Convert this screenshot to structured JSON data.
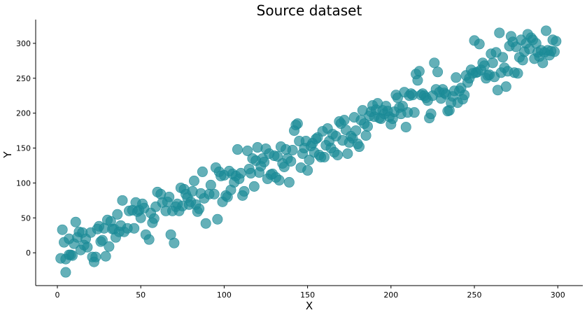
{
  "chart_data": {
    "type": "scatter",
    "title": "Source dataset",
    "xlabel": "X",
    "ylabel": "Y",
    "xlim": [
      -13,
      315
    ],
    "ylim": [
      -47,
      334
    ],
    "xticks": [
      0,
      50,
      100,
      150,
      200,
      250,
      300
    ],
    "yticks": [
      0,
      50,
      100,
      150,
      200,
      250,
      300
    ],
    "grid": false,
    "color": "#1a8a96",
    "series": [
      {
        "points": [
          [
            2,
            -8
          ],
          [
            3,
            33
          ],
          [
            4,
            15
          ],
          [
            5,
            -9
          ],
          [
            5,
            -28
          ],
          [
            7,
            20
          ],
          [
            7,
            -3
          ],
          [
            8,
            -3
          ],
          [
            9,
            -4
          ],
          [
            10,
            13
          ],
          [
            11,
            44
          ],
          [
            12,
            22
          ],
          [
            13,
            30
          ],
          [
            14,
            4
          ],
          [
            15,
            29
          ],
          [
            16,
            11
          ],
          [
            17,
            20
          ],
          [
            18,
            8
          ],
          [
            20,
            29
          ],
          [
            21,
            -6
          ],
          [
            22,
            -13
          ],
          [
            23,
            -6
          ],
          [
            24,
            34
          ],
          [
            25,
            38
          ],
          [
            26,
            16
          ],
          [
            27,
            18
          ],
          [
            28,
            35
          ],
          [
            29,
            -5
          ],
          [
            30,
            47
          ],
          [
            31,
            9
          ],
          [
            32,
            45
          ],
          [
            33,
            34
          ],
          [
            34,
            34
          ],
          [
            35,
            22
          ],
          [
            36,
            55
          ],
          [
            37,
            30
          ],
          [
            38,
            39
          ],
          [
            39,
            75
          ],
          [
            40,
            30
          ],
          [
            42,
            35
          ],
          [
            43,
            60
          ],
          [
            45,
            61
          ],
          [
            46,
            35
          ],
          [
            47,
            72
          ],
          [
            48,
            59
          ],
          [
            49,
            61
          ],
          [
            50,
            50
          ],
          [
            51,
            70
          ],
          [
            52,
            64
          ],
          [
            53,
            26
          ],
          [
            55,
            19
          ],
          [
            56,
            57
          ],
          [
            57,
            43
          ],
          [
            58,
            49
          ],
          [
            59,
            66
          ],
          [
            60,
            87
          ],
          [
            62,
            84
          ],
          [
            63,
            72
          ],
          [
            65,
            60
          ],
          [
            66,
            73
          ],
          [
            67,
            80
          ],
          [
            68,
            26
          ],
          [
            69,
            60
          ],
          [
            70,
            14
          ],
          [
            71,
            66
          ],
          [
            72,
            70
          ],
          [
            73,
            60
          ],
          [
            74,
            93
          ],
          [
            75,
            67
          ],
          [
            76,
            91
          ],
          [
            77,
            84
          ],
          [
            78,
            79
          ],
          [
            79,
            69
          ],
          [
            80,
            73
          ],
          [
            81,
            88
          ],
          [
            82,
            103
          ],
          [
            83,
            69
          ],
          [
            84,
            59
          ],
          [
            85,
            63
          ],
          [
            86,
            85
          ],
          [
            87,
            116
          ],
          [
            88,
            78
          ],
          [
            89,
            42
          ],
          [
            91,
            84
          ],
          [
            92,
            97
          ],
          [
            94,
            84
          ],
          [
            95,
            122
          ],
          [
            96,
            48
          ],
          [
            97,
            116
          ],
          [
            98,
            110
          ],
          [
            99,
            73
          ],
          [
            100,
            111
          ],
          [
            101,
            82
          ],
          [
            102,
            80
          ],
          [
            103,
            117
          ],
          [
            104,
            90
          ],
          [
            105,
            113
          ],
          [
            106,
            101
          ],
          [
            107,
            110
          ],
          [
            108,
            148
          ],
          [
            109,
            106
          ],
          [
            110,
            114
          ],
          [
            111,
            82
          ],
          [
            112,
            88
          ],
          [
            114,
            146
          ],
          [
            115,
            120
          ],
          [
            116,
            114
          ],
          [
            117,
            135
          ],
          [
            118,
            95
          ],
          [
            119,
            132
          ],
          [
            120,
            151
          ],
          [
            121,
            115
          ],
          [
            122,
            124
          ],
          [
            123,
            135
          ],
          [
            124,
            130
          ],
          [
            125,
            149
          ],
          [
            126,
            106
          ],
          [
            127,
            142
          ],
          [
            128,
            112
          ],
          [
            129,
            113
          ],
          [
            130,
            139
          ],
          [
            131,
            108
          ],
          [
            132,
            138
          ],
          [
            133,
            104
          ],
          [
            134,
            152
          ],
          [
            135,
            128
          ],
          [
            136,
            123
          ],
          [
            137,
            148
          ],
          [
            138,
            135
          ],
          [
            139,
            101
          ],
          [
            140,
            131
          ],
          [
            141,
            147
          ],
          [
            142,
            175
          ],
          [
            143,
            183
          ],
          [
            144,
            185
          ],
          [
            145,
            160
          ],
          [
            146,
            122
          ],
          [
            147,
            142
          ],
          [
            148,
            150
          ],
          [
            149,
            160
          ],
          [
            150,
            118
          ],
          [
            151,
            133
          ],
          [
            152,
            153
          ],
          [
            153,
            157
          ],
          [
            154,
            144
          ],
          [
            155,
            163
          ],
          [
            156,
            165
          ],
          [
            157,
            140
          ],
          [
            158,
            137
          ],
          [
            159,
            174
          ],
          [
            160,
            137
          ],
          [
            161,
            154
          ],
          [
            162,
            178
          ],
          [
            163,
            160
          ],
          [
            164,
            150
          ],
          [
            165,
            170
          ],
          [
            166,
            144
          ],
          [
            167,
            167
          ],
          [
            168,
            140
          ],
          [
            169,
            188
          ],
          [
            170,
            185
          ],
          [
            171,
            161
          ],
          [
            172,
            190
          ],
          [
            173,
            176
          ],
          [
            174,
            142
          ],
          [
            175,
            158
          ],
          [
            176,
            167
          ],
          [
            177,
            164
          ],
          [
            178,
            194
          ],
          [
            179,
            175
          ],
          [
            180,
            156
          ],
          [
            181,
            152
          ],
          [
            182,
            190
          ],
          [
            183,
            204
          ],
          [
            184,
            185
          ],
          [
            185,
            168
          ],
          [
            186,
            181
          ],
          [
            187,
            196
          ],
          [
            188,
            202
          ],
          [
            189,
            211
          ],
          [
            190,
            195
          ],
          [
            191,
            205
          ],
          [
            192,
            214
          ],
          [
            193,
            193
          ],
          [
            194,
            192
          ],
          [
            195,
            204
          ],
          [
            196,
            199
          ],
          [
            197,
            210
          ],
          [
            198,
            203
          ],
          [
            199,
            195
          ],
          [
            200,
            184
          ],
          [
            201,
            192
          ],
          [
            202,
            202
          ],
          [
            203,
            226
          ],
          [
            204,
            222
          ],
          [
            205,
            208
          ],
          [
            206,
            199
          ],
          [
            207,
            210
          ],
          [
            208,
            230
          ],
          [
            209,
            180
          ],
          [
            210,
            201
          ],
          [
            211,
            225
          ],
          [
            212,
            228
          ],
          [
            213,
            226
          ],
          [
            214,
            201
          ],
          [
            215,
            256
          ],
          [
            216,
            247
          ],
          [
            217,
            260
          ],
          [
            218,
            226
          ],
          [
            219,
            228
          ],
          [
            220,
            225
          ],
          [
            221,
            222
          ],
          [
            222,
            218
          ],
          [
            223,
            193
          ],
          [
            224,
            199
          ],
          [
            225,
            225
          ],
          [
            226,
            272
          ],
          [
            227,
            234
          ],
          [
            228,
            259
          ],
          [
            229,
            230
          ],
          [
            230,
            221
          ],
          [
            231,
            234
          ],
          [
            232,
            229
          ],
          [
            233,
            227
          ],
          [
            234,
            203
          ],
          [
            235,
            204
          ],
          [
            236,
            215
          ],
          [
            237,
            224
          ],
          [
            238,
            232
          ],
          [
            239,
            251
          ],
          [
            240,
            215
          ],
          [
            241,
            232
          ],
          [
            242,
            236
          ],
          [
            243,
            220
          ],
          [
            244,
            226
          ],
          [
            245,
            254
          ],
          [
            246,
            244
          ],
          [
            247,
            250
          ],
          [
            248,
            262
          ],
          [
            249,
            257
          ],
          [
            250,
            304
          ],
          [
            251,
            258
          ],
          [
            252,
            259
          ],
          [
            253,
            299
          ],
          [
            254,
            262
          ],
          [
            255,
            272
          ],
          [
            256,
            268
          ],
          [
            257,
            250
          ],
          [
            258,
            254
          ],
          [
            259,
            255
          ],
          [
            260,
            285
          ],
          [
            261,
            272
          ],
          [
            262,
            252
          ],
          [
            263,
            287
          ],
          [
            264,
            233
          ],
          [
            265,
            315
          ],
          [
            266,
            258
          ],
          [
            267,
            280
          ],
          [
            268,
            265
          ],
          [
            269,
            238
          ],
          [
            270,
            260
          ],
          [
            271,
            296
          ],
          [
            272,
            310
          ],
          [
            273,
            302
          ],
          [
            274,
            258
          ],
          [
            275,
            295
          ],
          [
            276,
            257
          ],
          [
            277,
            280
          ],
          [
            278,
            305
          ],
          [
            279,
            276
          ],
          [
            280,
            288
          ],
          [
            281,
            300
          ],
          [
            282,
            313
          ],
          [
            283,
            292
          ],
          [
            284,
            308
          ],
          [
            285,
            305
          ],
          [
            286,
            278
          ],
          [
            287,
            300
          ],
          [
            288,
            287
          ],
          [
            289,
            281
          ],
          [
            290,
            290
          ],
          [
            291,
            272
          ],
          [
            292,
            287
          ],
          [
            293,
            318
          ],
          [
            294,
            290
          ],
          [
            295,
            283
          ],
          [
            296,
            289
          ],
          [
            297,
            305
          ],
          [
            298,
            288
          ],
          [
            299,
            303
          ]
        ]
      }
    ]
  }
}
